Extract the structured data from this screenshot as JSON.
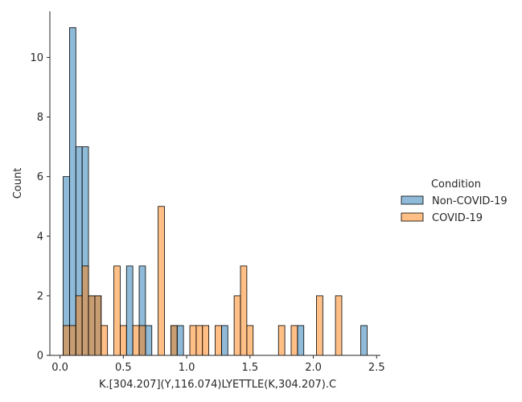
{
  "chart_data": {
    "type": "bar",
    "subtype": "histogram-overlay",
    "xlabel": "K.[304.207](Y,116.074)LYETTLE(K,304.207).C",
    "ylabel": "Count",
    "xlim": [
      -0.08,
      2.53
    ],
    "ylim": [
      0,
      11.55
    ],
    "x_ticks": [
      0.0,
      0.5,
      1.0,
      1.5,
      2.0,
      2.5
    ],
    "x_tick_labels": [
      "0.0",
      "0.5",
      "1.0",
      "1.5",
      "2.0",
      "2.5"
    ],
    "y_ticks": [
      0,
      2,
      4,
      6,
      8,
      10
    ],
    "y_tick_labels": [
      "0",
      "2",
      "4",
      "6",
      "8",
      "10"
    ],
    "bin_width": 0.05,
    "grid": false,
    "legend": {
      "title": "Condition",
      "placement": "right-outside",
      "entries": [
        "Non-COVID-19",
        "COVID-19"
      ]
    },
    "series": [
      {
        "name": "Non-COVID-19",
        "color": "#1f77b4",
        "bins": [
          {
            "x0": 0.025,
            "count": 6
          },
          {
            "x0": 0.075,
            "count": 11
          },
          {
            "x0": 0.125,
            "count": 7
          },
          {
            "x0": 0.175,
            "count": 7
          },
          {
            "x0": 0.225,
            "count": 2
          },
          {
            "x0": 0.275,
            "count": 2
          },
          {
            "x0": 0.525,
            "count": 3
          },
          {
            "x0": 0.625,
            "count": 3
          },
          {
            "x0": 0.675,
            "count": 1
          },
          {
            "x0": 0.875,
            "count": 1
          },
          {
            "x0": 0.925,
            "count": 1
          },
          {
            "x0": 1.275,
            "count": 1
          },
          {
            "x0": 1.875,
            "count": 1
          },
          {
            "x0": 2.375,
            "count": 1
          }
        ]
      },
      {
        "name": "COVID-19",
        "color": "#ff7f0e",
        "bins": [
          {
            "x0": 0.025,
            "count": 1
          },
          {
            "x0": 0.075,
            "count": 1
          },
          {
            "x0": 0.125,
            "count": 2
          },
          {
            "x0": 0.175,
            "count": 3
          },
          {
            "x0": 0.225,
            "count": 2
          },
          {
            "x0": 0.275,
            "count": 2
          },
          {
            "x0": 0.325,
            "count": 1
          },
          {
            "x0": 0.425,
            "count": 3
          },
          {
            "x0": 0.475,
            "count": 1
          },
          {
            "x0": 0.575,
            "count": 1
          },
          {
            "x0": 0.625,
            "count": 1
          },
          {
            "x0": 0.775,
            "count": 5
          },
          {
            "x0": 0.875,
            "count": 1
          },
          {
            "x0": 1.025,
            "count": 1
          },
          {
            "x0": 1.075,
            "count": 1
          },
          {
            "x0": 1.125,
            "count": 1
          },
          {
            "x0": 1.225,
            "count": 1
          },
          {
            "x0": 1.375,
            "count": 2
          },
          {
            "x0": 1.425,
            "count": 3
          },
          {
            "x0": 1.475,
            "count": 1
          },
          {
            "x0": 1.725,
            "count": 1
          },
          {
            "x0": 1.825,
            "count": 1
          },
          {
            "x0": 2.025,
            "count": 2
          },
          {
            "x0": 2.175,
            "count": 2
          }
        ]
      }
    ]
  }
}
